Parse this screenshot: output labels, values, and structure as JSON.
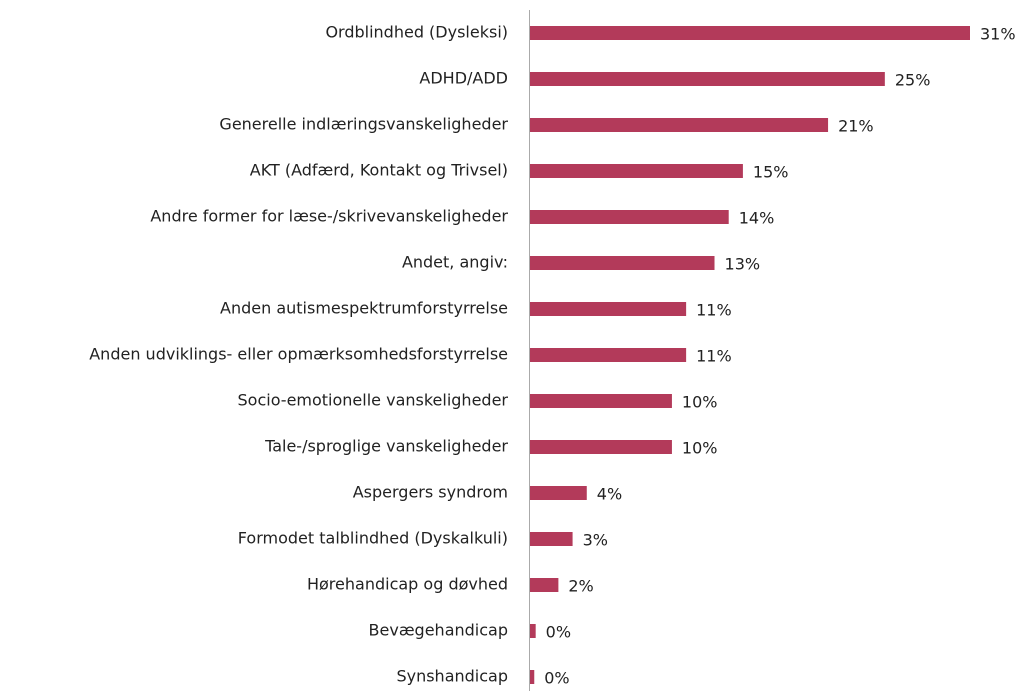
{
  "chart_data": {
    "type": "barh",
    "categories": [
      "Ordblindhed (Dysleksi)",
      "ADHD/ADD",
      "Generelle indlæringsvanskeligheder",
      "AKT (Adfærd, Kontakt og Trivsel)",
      "Andre former for læse-/skrivevanskeligheder",
      "Andet, angiv:",
      "Anden autismespektrumforstyrrelse",
      "Anden udviklings- eller opmærksomhedsforstyrrelse",
      "Socio-emotionelle vanskeligheder",
      "Tale-/sproglige vanskeligheder",
      "Aspergers syndrom",
      "Formodet talblindhed (Dyskalkuli)",
      "Hørehandicap og døvhed",
      "Bevægehandicap",
      "Synshandicap"
    ],
    "values": [
      31,
      25,
      21,
      15,
      14,
      13,
      11,
      11,
      10,
      10,
      4,
      3,
      2,
      0.4,
      0.3
    ],
    "value_labels": [
      "31%",
      "25%",
      "21%",
      "15%",
      "14%",
      "13%",
      "11%",
      "11%",
      "10%",
      "10%",
      "4%",
      "3%",
      "2%",
      "0%",
      "0%"
    ],
    "color": "#b33a5a"
  }
}
